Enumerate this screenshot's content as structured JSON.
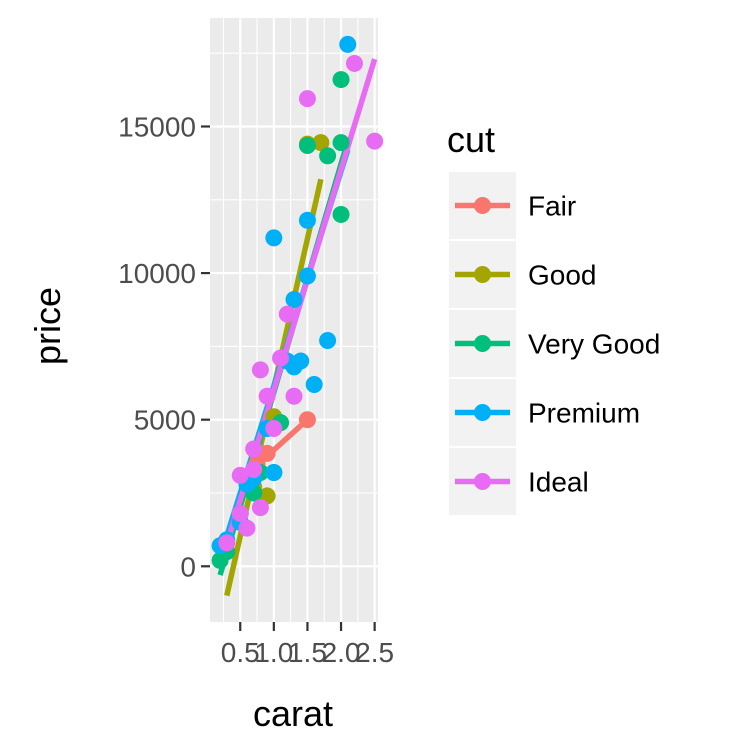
{
  "chart_data": {
    "type": "scatter",
    "xlabel": "carat",
    "ylabel": "price",
    "xlim": [
      0.05,
      2.55
    ],
    "ylim": [
      -1900,
      18700
    ],
    "x_ticks": [
      0.5,
      1.0,
      1.5,
      2.0,
      2.5
    ],
    "x_tick_labels": [
      "0.5",
      "1.0",
      "1.5",
      "2.0",
      "2.5"
    ],
    "y_ticks": [
      0,
      5000,
      10000,
      15000
    ],
    "y_tick_labels": [
      "0",
      "5000",
      "10000",
      "15000"
    ],
    "grid": true,
    "panel_background": "#ebebeb",
    "legend": {
      "title": "cut",
      "position": "right"
    },
    "series": [
      {
        "name": "Fair",
        "color": "#f8766d",
        "points": [
          [
            0.75,
            3500
          ],
          [
            0.9,
            3850
          ],
          [
            1.5,
            5000
          ]
        ],
        "fit": [
          [
            0.75,
            3450
          ],
          [
            1.5,
            5000
          ]
        ]
      },
      {
        "name": "Good",
        "color": "#a3a500",
        "points": [
          [
            0.3,
            500
          ],
          [
            0.7,
            2700
          ],
          [
            0.9,
            2400
          ],
          [
            1.0,
            5100
          ],
          [
            1.5,
            14400
          ],
          [
            1.7,
            14450
          ]
        ],
        "fit": [
          [
            0.3,
            -1000
          ],
          [
            1.7,
            13200
          ]
        ]
      },
      {
        "name": "Very Good",
        "color": "#00bf7d",
        "points": [
          [
            0.2,
            200
          ],
          [
            0.3,
            500
          ],
          [
            0.5,
            1800
          ],
          [
            0.7,
            2500
          ],
          [
            0.8,
            3200
          ],
          [
            1.0,
            3200
          ],
          [
            1.1,
            4900
          ],
          [
            1.5,
            14350
          ],
          [
            2.0,
            16600
          ],
          [
            2.0,
            14450
          ],
          [
            2.0,
            12000
          ],
          [
            1.8,
            14000
          ]
        ],
        "fit": [
          [
            0.2,
            -300
          ],
          [
            2.1,
            14500
          ]
        ]
      },
      {
        "name": "Premium",
        "color": "#00b0f6",
        "points": [
          [
            0.2,
            700
          ],
          [
            0.3,
            900
          ],
          [
            0.5,
            1500
          ],
          [
            0.6,
            2800
          ],
          [
            0.7,
            3000
          ],
          [
            0.9,
            4700
          ],
          [
            1.0,
            11200
          ],
          [
            1.0,
            3200
          ],
          [
            1.2,
            7000
          ],
          [
            1.3,
            9100
          ],
          [
            1.3,
            6800
          ],
          [
            1.4,
            7000
          ],
          [
            1.5,
            11800
          ],
          [
            1.5,
            9900
          ],
          [
            1.6,
            6200
          ],
          [
            1.8,
            7700
          ],
          [
            2.1,
            17800
          ]
        ],
        "fit": [
          [
            0.2,
            300
          ],
          [
            2.1,
            14200
          ]
        ]
      },
      {
        "name": "Ideal",
        "color": "#e76bf3",
        "points": [
          [
            0.3,
            800
          ],
          [
            0.5,
            1800
          ],
          [
            0.5,
            3100
          ],
          [
            0.7,
            3300
          ],
          [
            0.7,
            4000
          ],
          [
            0.8,
            2000
          ],
          [
            0.8,
            6700
          ],
          [
            0.9,
            5800
          ],
          [
            1.0,
            4700
          ],
          [
            1.1,
            7100
          ],
          [
            1.2,
            8600
          ],
          [
            1.3,
            5800
          ],
          [
            1.5,
            15950
          ],
          [
            2.2,
            17150
          ],
          [
            2.5,
            14500
          ],
          [
            0.6,
            1300
          ]
        ],
        "fit": [
          [
            0.2,
            0
          ],
          [
            2.5,
            17300
          ]
        ]
      }
    ]
  }
}
